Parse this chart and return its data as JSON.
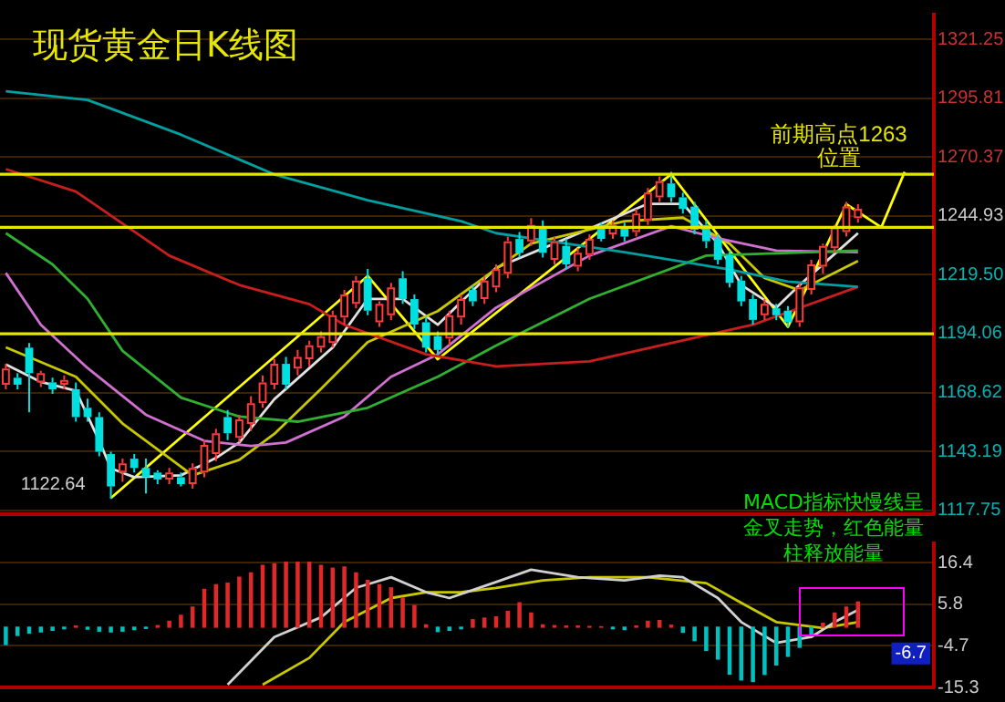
{
  "chart_data": [
    {
      "type": "candlestick",
      "title": "现货黄金日K线图",
      "categories": [
        null,
        null,
        null,
        null,
        null,
        null,
        null,
        null,
        null,
        null,
        null,
        null,
        null,
        null,
        null,
        null,
        null,
        null,
        null,
        null,
        null,
        null,
        null,
        null,
        null,
        null,
        null,
        null,
        null,
        null,
        null,
        null,
        null,
        null,
        null,
        null,
        null,
        null,
        null,
        null,
        null,
        null,
        null,
        null,
        null,
        null,
        null,
        null,
        null,
        null,
        null,
        null,
        null,
        null,
        null,
        null,
        null,
        null,
        null,
        null,
        null,
        null,
        null,
        null,
        null,
        null,
        null,
        null,
        null,
        null,
        null,
        null,
        null,
        null,
        null,
        null,
        null,
        null,
        null,
        null
      ],
      "ohlc": [
        [
          1172,
          1181,
          1170,
          1179
        ],
        [
          1175,
          1177,
          1170,
          1172
        ],
        [
          1188,
          1190,
          1160,
          1177
        ],
        [
          1173,
          1178,
          1171,
          1177
        ],
        [
          1173,
          1175,
          1168,
          1170
        ],
        [
          1172,
          1176,
          1170,
          1174
        ],
        [
          1170,
          1173,
          1156,
          1158
        ],
        [
          1162,
          1166,
          1156,
          1158
        ],
        [
          1158,
          1160,
          1141,
          1143
        ],
        [
          1142,
          1143,
          1122.64,
          1128
        ],
        [
          1134,
          1140,
          1130,
          1138
        ],
        [
          1140,
          1142,
          1134,
          1136
        ],
        [
          1136,
          1140,
          1125,
          1132
        ],
        [
          1134,
          1135,
          1129,
          1131
        ],
        [
          1131,
          1136,
          1129,
          1134
        ],
        [
          1132,
          1134,
          1128,
          1129
        ],
        [
          1129,
          1138,
          1127,
          1136
        ],
        [
          1134,
          1148,
          1132,
          1146
        ],
        [
          1142,
          1153,
          1139,
          1151
        ],
        [
          1158,
          1161,
          1148,
          1151
        ],
        [
          1149,
          1159,
          1147,
          1157
        ],
        [
          1155,
          1167,
          1152,
          1164
        ],
        [
          1164,
          1176,
          1162,
          1173
        ],
        [
          1172,
          1183,
          1170,
          1181
        ],
        [
          1181,
          1184,
          1170,
          1172
        ],
        [
          1179,
          1187,
          1176,
          1184
        ],
        [
          1183,
          1191,
          1180,
          1189
        ],
        [
          1188,
          1195,
          1186,
          1193
        ],
        [
          1190,
          1204,
          1188,
          1202
        ],
        [
          1201,
          1213,
          1198,
          1211
        ],
        [
          1207,
          1219,
          1205,
          1217
        ],
        [
          1218,
          1222,
          1202,
          1204
        ],
        [
          1199,
          1208,
          1197,
          1207
        ],
        [
          1202,
          1216,
          1200,
          1214
        ],
        [
          1218,
          1221,
          1207,
          1209
        ],
        [
          1209,
          1211,
          1196,
          1198
        ],
        [
          1199,
          1201,
          1186,
          1188
        ],
        [
          1193,
          1195,
          1185,
          1187
        ],
        [
          1192,
          1204,
          1189,
          1202
        ],
        [
          1201,
          1211,
          1198,
          1209
        ],
        [
          1213,
          1215,
          1206,
          1208
        ],
        [
          1209,
          1219,
          1207,
          1217
        ],
        [
          1214,
          1224,
          1212,
          1222
        ],
        [
          1220,
          1236,
          1218,
          1234
        ],
        [
          1235,
          1238,
          1227,
          1229
        ],
        [
          1234,
          1244,
          1232,
          1241
        ],
        [
          1240,
          1243,
          1227,
          1229
        ],
        [
          1226,
          1236,
          1224,
          1234
        ],
        [
          1232,
          1235,
          1222,
          1224
        ],
        [
          1223,
          1231,
          1221,
          1229
        ],
        [
          1228,
          1237,
          1226,
          1235
        ],
        [
          1240,
          1242,
          1234,
          1235
        ],
        [
          1237,
          1243,
          1235,
          1241
        ],
        [
          1240,
          1242,
          1234,
          1236
        ],
        [
          1238,
          1248,
          1236,
          1246
        ],
        [
          1243,
          1257,
          1241,
          1255
        ],
        [
          1253,
          1262,
          1251,
          1260
        ],
        [
          1259,
          1264,
          1251,
          1253
        ],
        [
          1253,
          1255,
          1246,
          1248
        ],
        [
          1249,
          1251,
          1237,
          1239
        ],
        [
          1241,
          1243,
          1231,
          1234
        ],
        [
          1235,
          1237,
          1224,
          1226
        ],
        [
          1228,
          1230,
          1214,
          1216
        ],
        [
          1217,
          1219,
          1206,
          1208
        ],
        [
          1209,
          1211,
          1198,
          1200
        ],
        [
          1202,
          1209,
          1200,
          1207
        ],
        [
          1205,
          1207,
          1200,
          1202
        ],
        [
          1204,
          1206,
          1197,
          1199
        ],
        [
          1199,
          1216,
          1197,
          1214
        ],
        [
          1213,
          1226,
          1211,
          1224
        ],
        [
          1223,
          1233,
          1220,
          1232
        ],
        [
          1231,
          1241,
          1229,
          1240
        ],
        [
          1238,
          1251,
          1236,
          1249
        ],
        [
          1244,
          1250,
          1242,
          1248
        ],
        null,
        null,
        null,
        null,
        null,
        null
      ],
      "series": [
        {
          "type": "line",
          "color": "#00a0a0",
          "values": [
            1298.8,
            null,
            null,
            null,
            null,
            null,
            null,
            1295.1,
            null,
            null,
            null,
            null,
            null,
            null,
            null,
            1280.1,
            null,
            null,
            null,
            null,
            null,
            null,
            null,
            1262.9,
            null,
            null,
            null,
            null,
            null,
            null,
            null,
            1251.7,
            null,
            null,
            null,
            null,
            null,
            null,
            null,
            1242.7,
            null,
            null,
            1237.5,
            null,
            null,
            null,
            null,
            null,
            1233,
            null,
            null,
            null,
            null,
            1229.3,
            null,
            null,
            null,
            null,
            null,
            null,
            null,
            null,
            1221.8,
            null,
            null,
            null,
            null,
            1216.6,
            null,
            null,
            null,
            null,
            null,
            1214.3,
            null,
            null,
            null,
            null,
            null,
            null
          ]
        },
        {
          "type": "line",
          "color": "#c81e1e",
          "values": [
            1265.2,
            null,
            null,
            null,
            null,
            null,
            1255.5,
            null,
            null,
            null,
            null,
            null,
            null,
            null,
            1227.8,
            null,
            null,
            null,
            null,
            null,
            1215.1,
            null,
            null,
            null,
            null,
            null,
            1206.8,
            null,
            null,
            1197.9,
            null,
            null,
            null,
            null,
            null,
            null,
            1185.1,
            null,
            null,
            null,
            null,
            null,
            1179.9,
            null,
            null,
            null,
            null,
            null,
            null,
            null,
            1182.1,
            null,
            null,
            null,
            null,
            null,
            1188.9,
            null,
            null,
            null,
            null,
            null,
            null,
            null,
            1197.9,
            null,
            null,
            null,
            null,
            null,
            null,
            null,
            null,
            1214.3,
            null,
            null,
            null,
            null,
            null,
            null
          ]
        },
        {
          "type": "line",
          "color": "#30b030",
          "values": [
            1237.5,
            null,
            null,
            null,
            1224,
            null,
            null,
            1209.1,
            null,
            null,
            1186.6,
            null,
            null,
            null,
            null,
            1166.4,
            null,
            null,
            null,
            null,
            1158.2,
            null,
            null,
            null,
            null,
            1156,
            null,
            null,
            null,
            null,
            null,
            1162,
            null,
            null,
            null,
            null,
            null,
            1175.4,
            null,
            null,
            null,
            null,
            1188.9,
            null,
            null,
            null,
            null,
            null,
            null,
            null,
            1209.1,
            null,
            null,
            null,
            null,
            null,
            null,
            null,
            null,
            null,
            1227.8,
            null,
            null,
            null,
            null,
            null,
            null,
            null,
            null,
            null,
            null,
            null,
            null,
            1230,
            null,
            null,
            null,
            null,
            null,
            null
          ]
        },
        {
          "type": "line",
          "color": "#d070d0",
          "values": [
            1220.3,
            null,
            null,
            1197.9,
            null,
            null,
            null,
            1179.2,
            null,
            null,
            null,
            null,
            1159,
            null,
            null,
            null,
            null,
            1147.7,
            null,
            null,
            null,
            1145.5,
            null,
            null,
            1147,
            null,
            null,
            null,
            null,
            1158.2,
            null,
            null,
            null,
            1175.4,
            null,
            null,
            null,
            1185.1,
            null,
            null,
            null,
            null,
            1205.3,
            null,
            null,
            null,
            null,
            null,
            null,
            null,
            1227.8,
            null,
            null,
            null,
            null,
            null,
            null,
            1240.5,
            null,
            null,
            null,
            1235.3,
            null,
            null,
            null,
            null,
            1230,
            null,
            null,
            null,
            null,
            null,
            null,
            1229.3,
            null,
            null,
            null,
            null,
            null,
            null
          ]
        },
        {
          "type": "line",
          "color": "#c8c800",
          "values": [
            1188.1,
            null,
            null,
            null,
            null,
            null,
            1175.4,
            null,
            null,
            null,
            1155.2,
            null,
            null,
            null,
            1140.3,
            null,
            1132.8,
            null,
            null,
            null,
            1139.5,
            null,
            null,
            1150.7,
            null,
            null,
            null,
            1170.2,
            null,
            null,
            null,
            1190.4,
            null,
            null,
            null,
            null,
            null,
            1203.8,
            null,
            null,
            null,
            null,
            null,
            null,
            null,
            1233,
            null,
            null,
            null,
            null,
            null,
            null,
            null,
            1242.7,
            null,
            null,
            null,
            null,
            1244.2,
            null,
            null,
            null,
            1233,
            null,
            null,
            1218.1,
            null,
            null,
            1212.8,
            null,
            null,
            null,
            null,
            1225.5,
            null,
            null,
            null,
            null,
            null,
            null
          ]
        },
        {
          "type": "line",
          "color": "#e0e0e0",
          "values": [
            1180.7,
            null,
            null,
            1173.2,
            null,
            null,
            1169.4,
            null,
            1147.7,
            1135.8,
            null,
            1132,
            null,
            null,
            null,
            1132.8,
            null,
            null,
            1140.3,
            null,
            1147,
            null,
            null,
            1165.7,
            null,
            null,
            null,
            null,
            1188.1,
            null,
            null,
            1209.1,
            null,
            null,
            1209.1,
            null,
            null,
            1197.9,
            null,
            null,
            null,
            null,
            1222.5,
            null,
            null,
            null,
            null,
            1233,
            null,
            null,
            null,
            null,
            null,
            null,
            null,
            1250.2,
            null,
            null,
            1250.2,
            null,
            null,
            1233,
            null,
            1215.1,
            null,
            null,
            1205.3,
            null,
            1215.1,
            null,
            null,
            null,
            1233,
            1237.5,
            null,
            null,
            null,
            null,
            null,
            null
          ]
        },
        {
          "type": "line",
          "color": "#ffff00",
          "values": [
            null,
            null,
            null,
            null,
            null,
            null,
            null,
            null,
            null,
            1123,
            null,
            null,
            null,
            null,
            null,
            null,
            null,
            null,
            null,
            null,
            null,
            null,
            null,
            null,
            null,
            null,
            null,
            null,
            null,
            null,
            null,
            1219,
            null,
            null,
            null,
            null,
            null,
            1183,
            null,
            null,
            null,
            null,
            null,
            null,
            null,
            null,
            null,
            null,
            null,
            null,
            null,
            null,
            null,
            null,
            null,
            null,
            null,
            1263,
            null,
            null,
            null,
            null,
            null,
            null,
            null,
            null,
            null,
            1197,
            null,
            null,
            null,
            null,
            1250,
            null,
            null,
            1240,
            null,
            1264,
            null,
            null
          ]
        }
      ],
      "ref_lines": [
        {
          "axis": "y",
          "value": 1263,
          "label": "前期高点1263位置",
          "color": "#e6e600"
        },
        {
          "axis": "y",
          "value": 1240,
          "color": "#e6e600"
        },
        {
          "axis": "y",
          "value": 1194,
          "color": "#e6e600"
        }
      ],
      "annotations": [
        "1122.64"
      ],
      "ylim": [
        1116,
        1332
      ],
      "yticks": [
        1321.25,
        1295.81,
        1270.37,
        1244.93,
        {
          "value": 1219.5,
          "label": "1219.50"
        },
        1194.06,
        1168.62,
        1143.19,
        1117.75
      ],
      "grid": "y",
      "tick_labels": "y"
    },
    {
      "type": "bar",
      "categories": [
        null,
        null,
        null,
        null,
        null,
        null,
        null,
        null,
        null,
        null,
        null,
        null,
        null,
        null,
        null,
        null,
        null,
        null,
        null,
        null,
        null,
        null,
        null,
        null,
        null,
        null,
        null,
        null,
        null,
        null,
        null,
        null,
        null,
        null,
        null,
        null,
        null,
        null,
        null,
        null,
        null,
        null,
        null,
        null,
        null,
        null,
        null,
        null,
        null,
        null,
        null,
        null,
        null,
        null,
        null,
        null,
        null,
        null,
        null,
        null,
        null,
        null,
        null,
        null,
        null,
        null,
        null,
        null,
        null,
        null,
        null,
        null,
        null,
        null,
        null,
        null,
        null,
        null,
        null,
        null
      ],
      "series": [
        {
          "type": "bar",
          "values": [
            -4.4,
            -2.1,
            -1.5,
            -1.2,
            -0.8,
            -0.4,
            0.3,
            -0.5,
            -1.0,
            -1.2,
            -1.0,
            -0.6,
            -0.3,
            0.4,
            1.5,
            3.0,
            5.1,
            9.6,
            10.8,
            11.2,
            12.7,
            13.8,
            15.7,
            16.1,
            16.5,
            16.5,
            16.5,
            15.7,
            15.0,
            15.3,
            13.8,
            11.9,
            10.8,
            10.0,
            7.4,
            5.5,
            0.6,
            -1.1,
            -0.8,
            -0.4,
            1.9,
            2.3,
            2.6,
            4.0,
            6.2,
            3.6,
            0.6,
            0.4,
            0.3,
            0.3,
            0.2,
            0.1,
            -0.4,
            -0.6,
            0.3,
            1.5,
            1.7,
            0.5,
            -1.3,
            -3.4,
            -5.9,
            -8.1,
            -11.9,
            -13.4,
            -13.8,
            -12.0,
            -9.6,
            -7.4,
            -5.1,
            -2.1,
            1.0,
            3.6,
            5.1,
            6.4,
            null,
            null,
            null,
            null,
            null,
            null
          ],
          "colors": [
            "#00c0c0",
            "#00c0c0",
            "#00c0c0",
            "#00c0c0",
            "#00c0c0",
            "#00c0c0",
            "#e02828",
            "#00c0c0",
            "#00c0c0",
            "#00c0c0",
            "#00c0c0",
            "#00c0c0",
            "#00c0c0",
            "#e02828",
            "#e02828",
            "#e02828",
            "#e02828",
            "#e02828",
            "#e02828",
            "#e02828",
            "#e02828",
            "#e02828",
            "#e02828",
            "#e02828",
            "#e02828",
            "#e02828",
            "#e02828",
            "#e02828",
            "#e02828",
            "#e02828",
            "#e02828",
            "#e02828",
            "#e02828",
            "#e02828",
            "#e02828",
            "#e02828",
            "#e02828",
            "#00c0c0",
            "#00c0c0",
            "#00c0c0",
            "#e02828",
            "#e02828",
            "#e02828",
            "#e02828",
            "#e02828",
            "#e02828",
            "#e02828",
            "#e02828",
            "#e02828",
            "#e02828",
            "#e02828",
            "#e02828",
            "#00c0c0",
            "#00c0c0",
            "#e02828",
            "#e02828",
            "#e02828",
            "#e02828",
            "#00c0c0",
            "#00c0c0",
            "#00c0c0",
            "#00c0c0",
            "#00c0c0",
            "#00c0c0",
            "#00c0c0",
            "#00c0c0",
            "#00c0c0",
            "#00c0c0",
            "#00c0c0",
            "#00c0c0",
            "#e02828",
            "#e02828",
            "#e02828",
            "#e02828",
            null,
            null,
            null,
            null,
            null,
            null
          ]
        },
        {
          "type": "line",
          "color": "#d0d0d0",
          "values": [
            null,
            null,
            null,
            null,
            null,
            null,
            null,
            null,
            null,
            null,
            null,
            null,
            null,
            null,
            null,
            null,
            null,
            null,
            null,
            -14.6,
            null,
            null,
            null,
            -2.5,
            null,
            null,
            null,
            2.5,
            null,
            null,
            10.0,
            null,
            null,
            12.7,
            null,
            null,
            8.9,
            null,
            7.4,
            null,
            null,
            null,
            11.5,
            null,
            null,
            14.6,
            null,
            null,
            null,
            12.7,
            null,
            null,
            null,
            11.9,
            null,
            null,
            13.1,
            null,
            12.7,
            null,
            null,
            7.4,
            null,
            1.3,
            null,
            null,
            -4.0,
            null,
            null,
            -2.5,
            null,
            1.3,
            null,
            4.4,
            null,
            null,
            null,
            null,
            null,
            null
          ]
        },
        {
          "type": "line",
          "color": "#c8c800",
          "values": [
            null,
            null,
            null,
            null,
            null,
            null,
            null,
            null,
            null,
            null,
            null,
            null,
            null,
            null,
            null,
            null,
            null,
            null,
            null,
            null,
            null,
            null,
            -14.6,
            null,
            null,
            null,
            -7.8,
            null,
            null,
            1.3,
            null,
            null,
            null,
            7.4,
            null,
            null,
            8.9,
            null,
            null,
            8.9,
            null,
            null,
            10.0,
            null,
            null,
            null,
            11.9,
            null,
            null,
            null,
            12.7,
            null,
            null,
            null,
            null,
            12.7,
            null,
            null,
            null,
            null,
            11.2,
            null,
            null,
            6.2,
            null,
            null,
            1.3,
            null,
            null,
            null,
            -0.2,
            null,
            null,
            1.3,
            null,
            null,
            null,
            null,
            null,
            null
          ]
        }
      ],
      "annotations": [
        "MACD指标快慢线呈金叉走势，红色能量柱释放能量",
        {
          "text": "-6.7",
          "y": -6.7
        }
      ],
      "ylim": [
        -15.3,
        21.3
      ],
      "yticks": [
        16.4,
        5.8,
        -4.7,
        -15.3
      ],
      "grid": "y",
      "tick_labels": "y"
    }
  ]
}
